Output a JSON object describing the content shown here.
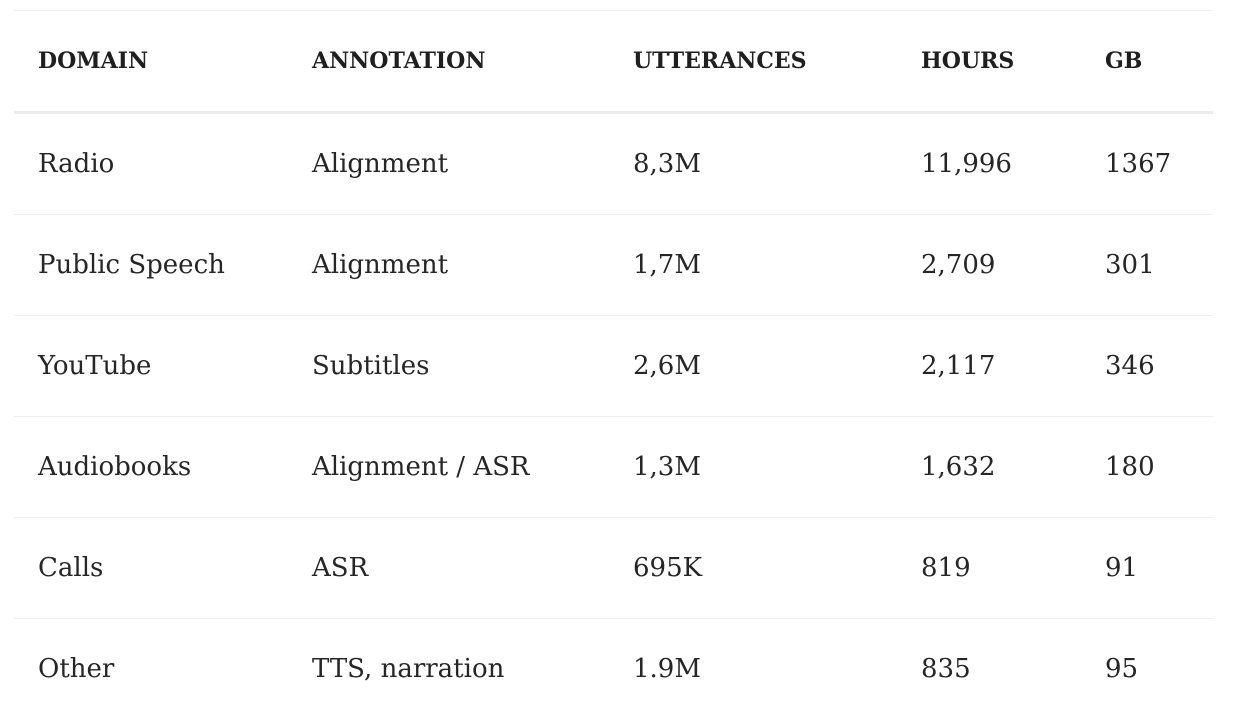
{
  "table": {
    "headers": [
      "DOMAIN",
      "ANNOTATION",
      "UTTERANCES",
      "HOURS",
      "GB"
    ],
    "rows": [
      [
        "Radio",
        "Alignment",
        "8,3M",
        "11,996",
        "1367"
      ],
      [
        "Public Speech",
        "Alignment",
        "1,7M",
        "2,709",
        "301"
      ],
      [
        "YouTube",
        "Subtitles",
        "2,6M",
        "2,117",
        "346"
      ],
      [
        "Audiobooks",
        "Alignment / ASR",
        "1,3M",
        "1,632",
        "180"
      ],
      [
        "Calls",
        "ASR",
        "695K",
        "819",
        "91"
      ],
      [
        "Other",
        "TTS, narration",
        "1.9M",
        "835",
        "95"
      ]
    ]
  }
}
